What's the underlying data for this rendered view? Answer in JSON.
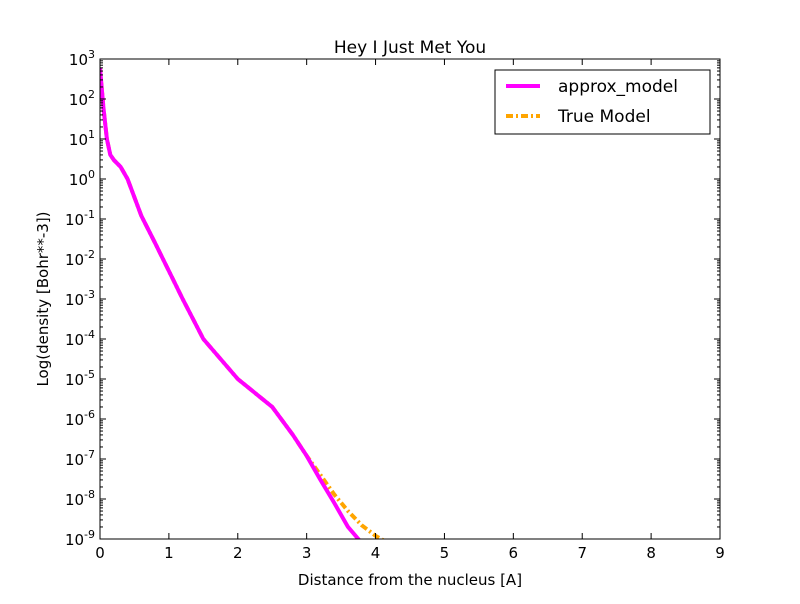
{
  "chart_data": {
    "type": "line",
    "title": "Hey I Just Met You",
    "xlabel": "Distance from the nucleus [A]",
    "ylabel": "Log(density [Bohr**-3])",
    "xlim": [
      0,
      9
    ],
    "ylim_log10": [
      -9,
      3
    ],
    "yscale": "log",
    "grid": false,
    "legend_position": "top-right",
    "x_ticks": [
      0,
      1,
      2,
      3,
      4,
      5,
      6,
      7,
      8,
      9
    ],
    "y_tick_exponents": [
      3,
      2,
      1,
      0,
      -1,
      -2,
      -3,
      -4,
      -5,
      -6,
      -7,
      -8,
      -9
    ],
    "y_tick_base": "10",
    "series": [
      {
        "name": "approx_model",
        "color": "#ff00ff",
        "style": "solid",
        "points": [
          [
            0.0,
            600
          ],
          [
            0.05,
            60
          ],
          [
            0.1,
            10
          ],
          [
            0.15,
            4
          ],
          [
            0.2,
            3
          ],
          [
            0.3,
            2
          ],
          [
            0.4,
            1
          ],
          [
            0.6,
            0.12
          ],
          [
            0.8,
            0.025
          ],
          [
            1.0,
            0.005
          ],
          [
            1.2,
            0.001
          ],
          [
            1.5,
            0.0001
          ],
          [
            2.0,
            1e-05
          ],
          [
            2.5,
            2e-06
          ],
          [
            2.8,
            4e-07
          ],
          [
            3.0,
            1.2e-07
          ],
          [
            3.2,
            3e-08
          ],
          [
            3.4,
            8e-09
          ],
          [
            3.6,
            2e-09
          ],
          [
            3.75,
            1e-09
          ],
          [
            3.9,
            5e-10
          ]
        ]
      },
      {
        "name": "True Model",
        "color": "#ffa500",
        "style": "dashdot",
        "points": [
          [
            0.0,
            600
          ],
          [
            0.05,
            60
          ],
          [
            0.1,
            10
          ],
          [
            0.15,
            4
          ],
          [
            0.2,
            3
          ],
          [
            0.3,
            2
          ],
          [
            0.4,
            1
          ],
          [
            0.6,
            0.12
          ],
          [
            0.8,
            0.025
          ],
          [
            1.0,
            0.005
          ],
          [
            1.2,
            0.001
          ],
          [
            1.5,
            0.0001
          ],
          [
            2.0,
            1e-05
          ],
          [
            2.5,
            2e-06
          ],
          [
            2.8,
            4e-07
          ],
          [
            3.0,
            1.2e-07
          ],
          [
            3.2,
            4e-08
          ],
          [
            3.4,
            1.3e-08
          ],
          [
            3.6,
            5e-09
          ],
          [
            3.8,
            2.2e-09
          ],
          [
            4.0,
            1.2e-09
          ],
          [
            4.15,
            8.5e-10
          ]
        ]
      }
    ]
  }
}
